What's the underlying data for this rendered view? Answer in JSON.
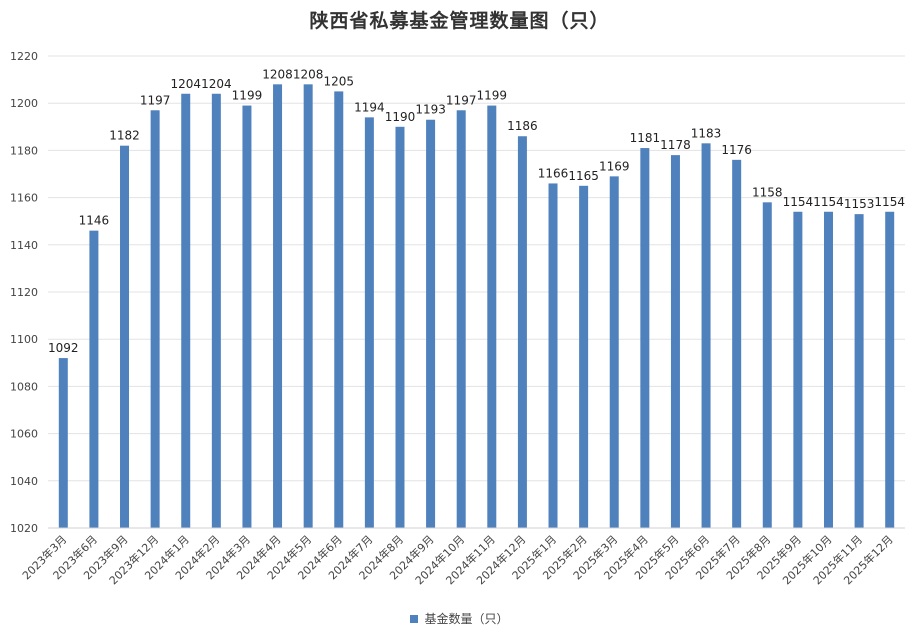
{
  "chart_data": {
    "type": "bar",
    "title": "陕西省私募基金管理数量图（只）",
    "categories": [
      "2023年3月",
      "2023年6月",
      "2023年9月",
      "2023年12月",
      "2024年1月",
      "2024年2月",
      "2024年3月",
      "2024年4月",
      "2024年5月",
      "2024年6月",
      "2024年7月",
      "2024年8月",
      "2024年9月",
      "2024年10月",
      "2024年11月",
      "2024年12月",
      "2025年1月",
      "2025年2月",
      "2025年3月",
      "2025年4月",
      "2025年5月",
      "2025年6月",
      "2025年7月",
      "2025年8月",
      "2025年9月",
      "2025年10月",
      "2025年11月",
      "2025年12月"
    ],
    "series": [
      {
        "name": "基金数量（只）",
        "values": [
          1092,
          1146,
          1182,
          1197,
          1204,
          1204,
          1199,
          1208,
          1208,
          1205,
          1194,
          1190,
          1193,
          1197,
          1199,
          1186,
          1166,
          1165,
          1169,
          1181,
          1178,
          1183,
          1176,
          1158,
          1154,
          1154,
          1153,
          1154
        ]
      }
    ],
    "ylim": [
      1020,
      1220
    ],
    "yticks": [
      1020,
      1040,
      1060,
      1080,
      1100,
      1120,
      1140,
      1160,
      1180,
      1200,
      1220
    ],
    "grid": true,
    "legend_position": "bottom",
    "bar_color": "#4F81BD",
    "grid_color": "#E3E3E3"
  }
}
